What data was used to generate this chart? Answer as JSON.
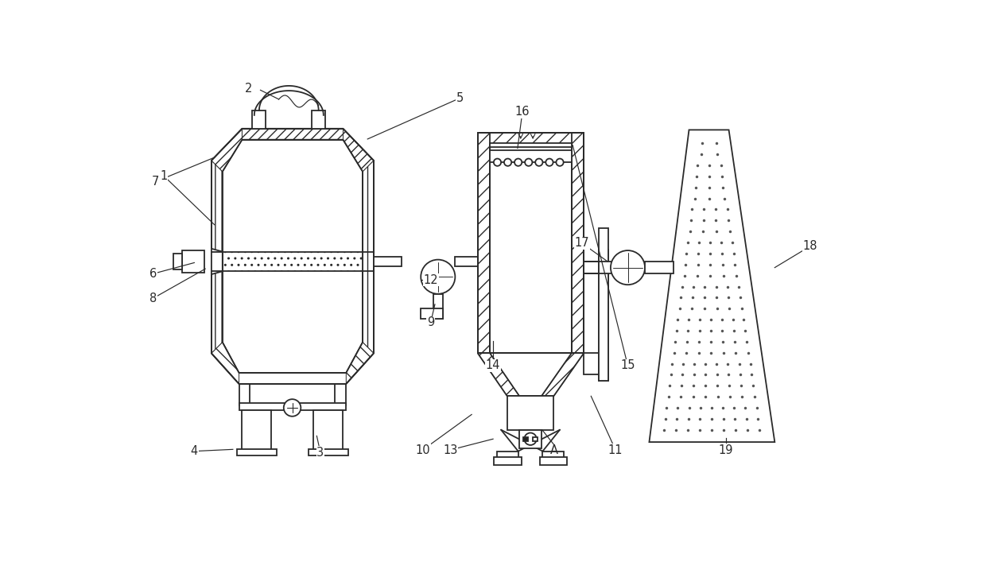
{
  "bg_color": "#ffffff",
  "lc": "#2a2a2a",
  "lw": 1.3,
  "figsize": [
    12.4,
    7.07
  ],
  "dpi": 100
}
